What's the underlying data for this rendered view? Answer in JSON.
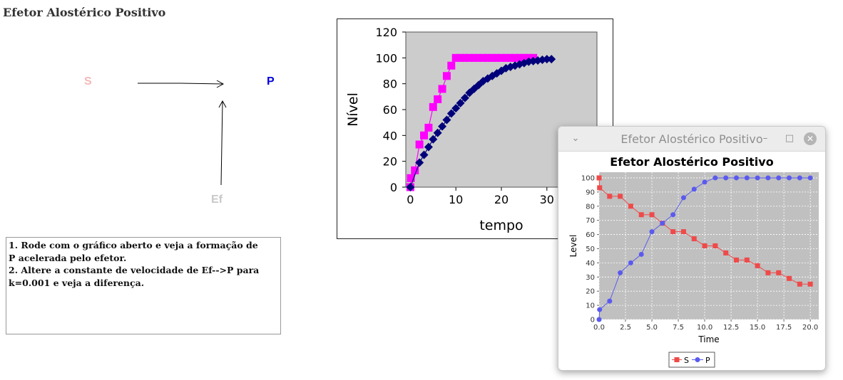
{
  "page": {
    "title": "Efetor Alostérico Positivo"
  },
  "diagram": {
    "species_s": "S",
    "species_p": "P",
    "species_ef": "Ef"
  },
  "instructions": [
    "1. Rode com o gráfico aberto e veja a formação de",
    "P acelerada pelo efetor.",
    "2. Altere a constante de velocidade de Ef-->P para",
    "k=0.001 e veja a diferença."
  ],
  "chart_data": [
    {
      "type": "scatter",
      "xlabel": "tempo",
      "ylabel": "Nível",
      "xlim": [
        -1,
        41
      ],
      "ylim": [
        0,
        120
      ],
      "x_ticks": [
        "0",
        "10",
        "20",
        "30"
      ],
      "y_ticks": [
        "0",
        "20",
        "40",
        "60",
        "80",
        "100",
        "120"
      ],
      "grid": false,
      "series": [
        {
          "color": "#ff00ff",
          "marker": "square",
          "x": [
            0,
            0.1,
            1,
            2,
            3,
            4,
            5,
            6,
            7,
            8,
            9,
            10,
            11,
            12,
            13,
            14,
            15,
            16,
            17,
            18,
            19,
            20,
            21,
            22,
            23,
            24,
            25,
            26,
            27
          ],
          "y": [
            0,
            7,
            13,
            33,
            40,
            46,
            62,
            68,
            76,
            86,
            94,
            100,
            100,
            100,
            100,
            100,
            100,
            100,
            100,
            100,
            100,
            100,
            100,
            100,
            100,
            100,
            100,
            100,
            100
          ]
        },
        {
          "color": "#00007a",
          "marker": "diamond",
          "x": [
            0,
            2,
            3,
            4,
            5,
            6,
            7,
            8,
            9,
            10,
            11,
            12,
            13,
            14,
            15,
            16,
            17,
            18,
            19,
            20,
            21,
            22,
            23,
            24,
            25,
            26,
            27,
            28,
            29,
            30,
            31
          ],
          "y": [
            0,
            19,
            25,
            31,
            37,
            42,
            47,
            52,
            57,
            61,
            65,
            69,
            73,
            76,
            79,
            82,
            84,
            86,
            88,
            90,
            92,
            93,
            94,
            95,
            96,
            97,
            97.5,
            98,
            98.5,
            99,
            99
          ]
        }
      ]
    },
    {
      "type": "line",
      "title": "Efetor Alostérico Positivo",
      "xlabel": "Time",
      "ylabel": "Level",
      "xlim": [
        0,
        20.8
      ],
      "ylim": [
        0,
        104
      ],
      "x_ticks": [
        "0.0",
        "2.5",
        "5.0",
        "7.5",
        "10.0",
        "12.5",
        "15.0",
        "17.5",
        "20.0"
      ],
      "y_ticks": [
        "0",
        "10",
        "20",
        "30",
        "40",
        "50",
        "60",
        "70",
        "80",
        "90",
        "100"
      ],
      "grid": true,
      "legend": "bottom",
      "series": [
        {
          "name": "S",
          "color": "#ef4a4a",
          "marker": "square",
          "x": [
            0,
            0.05,
            1,
            2,
            3,
            4,
            5,
            6,
            7,
            8,
            9,
            10,
            11,
            12,
            13,
            14,
            15,
            16,
            17,
            18,
            19,
            20
          ],
          "y": [
            100,
            93,
            87,
            87,
            80,
            74,
            74,
            68,
            62,
            62,
            57,
            52,
            52,
            47,
            42,
            42,
            38,
            33,
            33,
            29,
            25,
            25
          ]
        },
        {
          "name": "P",
          "color": "#5a5aef",
          "marker": "circle",
          "x": [
            0,
            0.05,
            1,
            2,
            3,
            4,
            5,
            6,
            7,
            8,
            9,
            10,
            11,
            12,
            13,
            14,
            15,
            16,
            17,
            18,
            19,
            20
          ],
          "y": [
            0,
            7,
            13,
            33,
            40,
            46,
            62,
            68,
            74,
            86,
            92,
            97,
            100,
            100,
            100,
            100,
            100,
            100,
            100,
            100,
            100,
            100
          ]
        }
      ]
    }
  ],
  "window": {
    "title": "Efetor Alostérico Positivo",
    "menu_glyph": "⌄",
    "minimize_glyph": "–",
    "maximize_glyph": "□",
    "close_glyph": "✕"
  }
}
